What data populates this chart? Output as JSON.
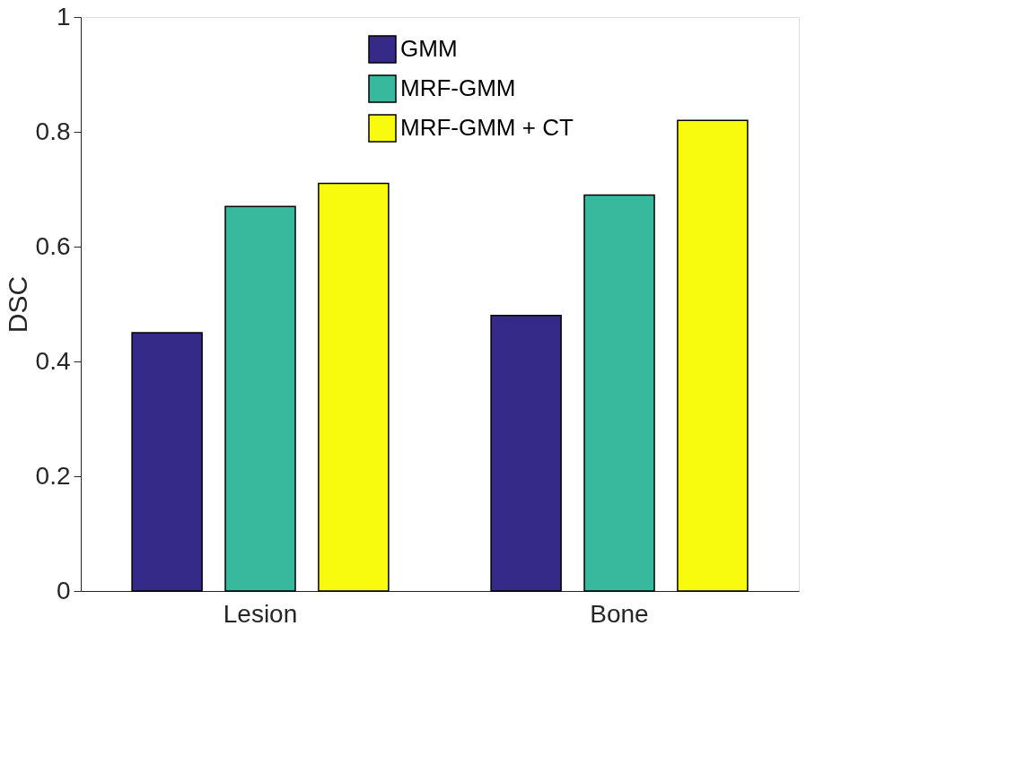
{
  "chart_data": {
    "type": "bar",
    "ylabel": "DSC",
    "categories": [
      "Lesion",
      "Bone"
    ],
    "series": [
      {
        "name": "GMM",
        "color": "#352a87",
        "values": [
          0.45,
          0.48
        ]
      },
      {
        "name": "MRF-GMM",
        "color": "#38b99e",
        "values": [
          0.67,
          0.69
        ]
      },
      {
        "name": "MRF-GMM + CT",
        "color": "#f9fb0e",
        "values": [
          0.71,
          0.82
        ]
      }
    ],
    "ylim": [
      0,
      1
    ],
    "yticks": [
      0,
      0.2,
      0.4,
      0.6,
      0.8,
      1
    ],
    "grid": false,
    "legend": "top"
  }
}
